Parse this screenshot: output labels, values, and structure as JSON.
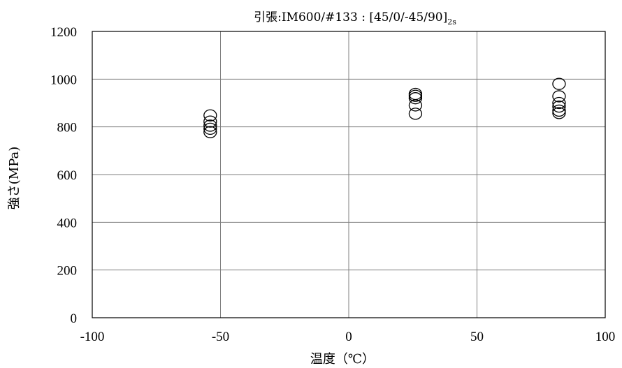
{
  "chart_data": {
    "type": "scatter",
    "title": {
      "prefix": "引張:IM600/#133 :  [45/0/-45/90]",
      "subscript": "2s"
    },
    "xlabel": "温度（℃）",
    "ylabel": "強さ(MPa)",
    "xlim": [
      -100,
      100
    ],
    "ylim": [
      0,
      1200
    ],
    "xticks": [
      -100,
      -50,
      0,
      50,
      100
    ],
    "yticks": [
      0,
      200,
      400,
      600,
      800,
      1000,
      1200
    ],
    "grid": true,
    "marker": "open-circle",
    "series": [
      {
        "points": [
          {
            "x": -54,
            "y": 848
          },
          {
            "x": -54,
            "y": 822
          },
          {
            "x": -54,
            "y": 805
          },
          {
            "x": -54,
            "y": 792
          },
          {
            "x": -54,
            "y": 778
          },
          {
            "x": 26,
            "y": 938
          },
          {
            "x": 26,
            "y": 930
          },
          {
            "x": 26,
            "y": 920
          },
          {
            "x": 26,
            "y": 890
          },
          {
            "x": 26,
            "y": 855
          },
          {
            "x": 82,
            "y": 980
          },
          {
            "x": 82,
            "y": 928
          },
          {
            "x": 82,
            "y": 900
          },
          {
            "x": 82,
            "y": 885
          },
          {
            "x": 82,
            "y": 868
          },
          {
            "x": 82,
            "y": 858
          }
        ]
      }
    ]
  }
}
